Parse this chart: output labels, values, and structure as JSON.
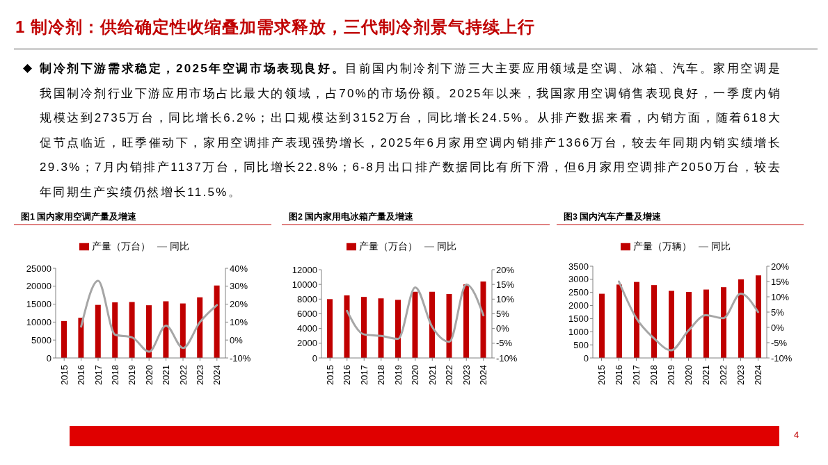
{
  "chart_data": [
    {
      "type": "other",
      "title": "1 制冷剂：供给确定性收缩叠加需求释放，三代制冷剂景气持续上行",
      "annotations": [
        "制冷剂下游需求稳定，2025年空调市场表现良好。目前国内制冷剂下游三大主要应用领域是空调、冰箱、汽车。家用空调是我国制冷剂行业下游应用市场占比最大的领域，占70%的市场份额。2025年以来，我国家用空调销售表现良好，一季度内销规模达到2735万台，同比增长6.2%；出口规模达到3152万台，同比增长24.5%。从排产数据来看，内销方面，随着618大促节点临近，旺季催动下，家用空调排产表现强势增长，2025年6月家用空调内销排产1366万台，较去年同期内销实绩增长29.3%；7月内销排产1137万台，同比增长22.8%；6-8月出口排产数据同比有所下滑，但6月家用空调排产2050万台，较去年同期生产实绩仍然增长11.5%。",
        "4"
      ]
    },
    {
      "type": "bar",
      "title": "图1 国内家用空调产量及增速",
      "categories": [
        "2015",
        "2016",
        "2017",
        "2018",
        "2019",
        "2020",
        "2021",
        "2022",
        "2023",
        "2024"
      ],
      "series": [
        {
          "name": "产量（万台）",
          "type": "bar",
          "color": "#c00000",
          "values": [
            10300,
            11200,
            14800,
            15500,
            15600,
            14700,
            15800,
            15200,
            16900,
            20200
          ]
        },
        {
          "name": "同比",
          "type": "line",
          "axis": "y2",
          "color": "#a6a6a6",
          "values": [
            null,
            7.5,
            33,
            3,
            1.5,
            -6.5,
            8,
            -4.5,
            10,
            19.5
          ]
        }
      ],
      "ylim": [
        0,
        25000
      ],
      "yticks": [
        0,
        5000,
        10000,
        15000,
        20000,
        25000
      ],
      "y2lim": [
        -10,
        40
      ],
      "y2ticks": [
        {
          "value": -10,
          "label": "-10%"
        },
        {
          "value": 0,
          "label": "0%"
        },
        {
          "value": 10,
          "label": "10%"
        },
        {
          "value": 20,
          "label": "20%"
        },
        {
          "value": 30,
          "label": "30%"
        },
        {
          "value": 40,
          "label": "40%"
        }
      ],
      "legend": "top"
    },
    {
      "type": "bar",
      "title": "图2 国内家用电冰箱产量及增速",
      "categories": [
        "2015",
        "2016",
        "2017",
        "2018",
        "2019",
        "2020",
        "2021",
        "2022",
        "2023",
        "2024"
      ],
      "series": [
        {
          "name": "产量（万台）",
          "type": "bar",
          "color": "#c00000",
          "values": [
            8000,
            8500,
            8300,
            8100,
            7900,
            9000,
            9000,
            8700,
            10000,
            10400
          ]
        },
        {
          "name": "同比",
          "type": "line",
          "axis": "y2",
          "color": "#a6a6a6",
          "values": [
            null,
            6,
            -2,
            -2.5,
            -3.5,
            14,
            0.5,
            -4.5,
            15,
            4.5
          ]
        }
      ],
      "ylim": [
        0,
        12000
      ],
      "yticks": [
        0,
        2000,
        4000,
        6000,
        8000,
        10000,
        12000
      ],
      "y2lim": [
        -10,
        20
      ],
      "y2ticks": [
        {
          "value": -10,
          "label": "-10%"
        },
        {
          "value": -5,
          "label": "-5%"
        },
        {
          "value": 0,
          "label": "0%"
        },
        {
          "value": 5,
          "label": "5%"
        },
        {
          "value": 10,
          "label": "10%"
        },
        {
          "value": 15,
          "label": "15%"
        },
        {
          "value": 20,
          "label": "20%"
        }
      ],
      "legend": "top"
    },
    {
      "type": "bar",
      "title": "图3 国内汽车产量及增速",
      "categories": [
        "2015",
        "2016",
        "2017",
        "2018",
        "2019",
        "2020",
        "2021",
        "2022",
        "2023",
        "2024"
      ],
      "series": [
        {
          "name": "产量（万辆）",
          "type": "bar",
          "color": "#c00000",
          "values": [
            2450,
            2800,
            2900,
            2780,
            2560,
            2520,
            2610,
            2700,
            3000,
            3150
          ]
        },
        {
          "name": "同比",
          "type": "line",
          "axis": "y2",
          "color": "#a6a6a6",
          "values": [
            null,
            15,
            3,
            -3.5,
            -7.5,
            -1,
            4,
            3,
            11,
            5
          ]
        }
      ],
      "ylim": [
        0,
        3500
      ],
      "yticks": [
        0,
        500,
        1000,
        1500,
        2000,
        2500,
        3000,
        3500
      ],
      "y2lim": [
        -10,
        20
      ],
      "y2ticks": [
        {
          "value": -10,
          "label": "-10%"
        },
        {
          "value": -5,
          "label": "-5%"
        },
        {
          "value": 0,
          "label": "0%"
        },
        {
          "value": 5,
          "label": "5%"
        },
        {
          "value": 10,
          "label": "10%"
        },
        {
          "value": 15,
          "label": "15%"
        },
        {
          "value": 20,
          "label": "20%"
        }
      ],
      "legend": "top"
    }
  ]
}
